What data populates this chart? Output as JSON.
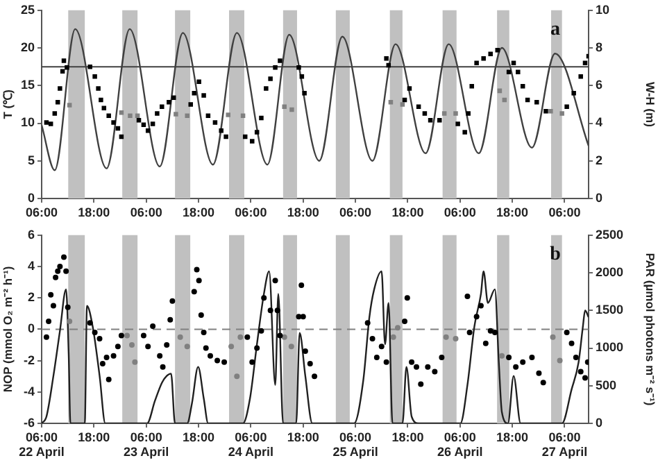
{
  "chart_data": [
    {
      "type": "scatter",
      "ylabel": "T (℃)",
      "y2label": "W-H (m)",
      "annotations": [
        "a"
      ],
      "xlim": [
        "--04-22T06:00",
        "--04-27T11:30"
      ],
      "xticks": [
        {
          "value": "--04-22T06:00",
          "label": "06:00"
        },
        {
          "value": "--04-22T18:00",
          "label": "18:00"
        },
        {
          "value": "--04-23T06:00",
          "label": "06:00"
        },
        {
          "value": "--04-23T18:00",
          "label": "18:00"
        },
        {
          "value": "--04-24T06:00",
          "label": "06:00"
        },
        {
          "value": "--04-24T18:00",
          "label": "18:00"
        },
        {
          "value": "--04-25T06:00",
          "label": "06:00"
        },
        {
          "value": "--04-25T18:00",
          "label": "18:00"
        },
        {
          "value": "--04-26T06:00",
          "label": "06:00"
        },
        {
          "value": "--04-26T18:00",
          "label": "18:00"
        },
        {
          "value": "--04-27T06:00",
          "label": "06:00"
        }
      ],
      "ylim": [
        0,
        25
      ],
      "yticks": [
        0,
        5,
        10,
        15,
        20,
        25
      ],
      "y2lim": [
        0,
        10
      ],
      "y2ticks": [
        0,
        2,
        4,
        6,
        8,
        10
      ],
      "series": [
        {
          "type": "line",
          "axis": "y2",
          "color": "#404040",
          "marker": "none",
          "line_style": "solid",
          "x": [
            "--04-22T06:00",
            "--04-22T09:00",
            "--04-22T13:42",
            "--04-22T20:54",
            "--04-23T02:12",
            "--04-23T09:06",
            "--04-23T14:24",
            "--04-23T21:18",
            "--04-24T02:48",
            "--04-24T09:48",
            "--04-24T14:48",
            "--04-24T21:42",
            "--04-25T03:00",
            "--04-25T09:54",
            "--04-25T15:12",
            "--04-25T22:06",
            "--04-26T03:24",
            "--04-26T10:18",
            "--04-26T15:36",
            "--04-26T22:30",
            "--04-27T03:48",
            "--04-27T11:30"
          ],
          "values": [
            3.9,
            1.5,
            9.0,
            1.6,
            9.0,
            1.7,
            8.8,
            1.8,
            8.8,
            1.8,
            8.7,
            2.0,
            8.6,
            2.0,
            8.2,
            2.4,
            8.2,
            2.4,
            8.0,
            2.7,
            7.7,
            2.8
          ]
        },
        {
          "color": "#000000",
          "marker": "square",
          "x": [
            "--04-22T07:06",
            "--04-22T08:06",
            "--04-22T09:00",
            "--04-22T09:42",
            "--04-22T10:12",
            "--04-22T10:48",
            "--04-22T11:06",
            "--04-22T11:48",
            "--04-22T17:06",
            "--04-22T18:12",
            "--04-22T19:00",
            "--04-22T19:36",
            "--04-22T20:18",
            "--04-22T21:24",
            "--04-22T22:30",
            "--04-22T23:30",
            "--04-23T00:18",
            "--04-23T04:18",
            "--04-23T05:24",
            "--04-23T06:24",
            "--04-23T07:30",
            "--04-23T08:30",
            "--04-23T09:36",
            "--04-23T11:12",
            "--04-23T12:18",
            "--04-23T16:12",
            "--04-23T17:00",
            "--04-23T18:06",
            "--04-23T19:12",
            "--04-23T20:12",
            "--04-23T21:48",
            "--04-23T23:12",
            "--04-24T00:18",
            "--04-24T04:42",
            "--04-24T06:18",
            "--04-24T07:24",
            "--04-24T08:24",
            "--04-24T09:30",
            "--04-24T10:30",
            "--04-24T11:36",
            "--04-24T12:42",
            "--04-24T17:00",
            "--04-24T17:42",
            "--04-24T18:18",
            "--04-25T13:06",
            "--04-25T13:36",
            "--04-25T17:18",
            "--04-25T18:24",
            "--04-25T20:30",
            "--04-25T21:54",
            "--04-25T23:12",
            "--04-26T01:18",
            "--04-26T05:30",
            "--04-26T07:06",
            "--04-26T07:54",
            "--04-26T08:42",
            "--04-26T09:48",
            "--04-26T11:24",
            "--04-26T13:00",
            "--04-26T14:36",
            "--04-26T17:12",
            "--04-26T18:18",
            "--04-26T19:18",
            "--04-26T20:24",
            "--04-26T21:30",
            "--04-26T23:36",
            "--04-27T01:42",
            "--04-27T06:30",
            "--04-27T08:06",
            "--04-27T09:42",
            "--04-27T10:42",
            "--04-27T11:30"
          ],
          "values": [
            10.1,
            9.9,
            11.3,
            12.8,
            14.6,
            16.9,
            18.3,
            17.4,
            17.5,
            16.2,
            14.6,
            13.1,
            12.0,
            11.0,
            10.1,
            9.3,
            8.2,
            10.4,
            9.8,
            9.0,
            9.9,
            11.3,
            12.2,
            12.8,
            13.4,
            12.5,
            14.0,
            15.5,
            13.7,
            11.0,
            10.1,
            9.0,
            8.2,
            8.2,
            7.6,
            8.8,
            10.7,
            14.6,
            15.9,
            17.4,
            18.3,
            17.4,
            16.2,
            14.0,
            18.6,
            17.7,
            13.1,
            14.6,
            12.2,
            11.3,
            10.4,
            10.4,
            9.9,
            8.8,
            11.3,
            14.9,
            18.0,
            18.6,
            19.2,
            19.7,
            16.8,
            18.0,
            16.8,
            14.9,
            13.1,
            12.8,
            11.6,
            12.2,
            14.0,
            16.2,
            18.0,
            18.9
          ]
        },
        {
          "color": "#808080",
          "marker": "square",
          "x": [
            "--04-22T12:24",
            "--04-23T00:18",
            "--04-23T02:18",
            "--04-23T04:00",
            "--04-23T12:48",
            "--04-23T15:24",
            "--04-24T00:48",
            "--04-24T04:12",
            "--04-24T13:42",
            "--04-24T15:24",
            "--04-25T14:06",
            "--04-25T16:48",
            "--04-26T02:24",
            "--04-26T05:00",
            "--04-26T15:06",
            "--04-26T16:12",
            "--04-27T02:48",
            "--04-27T05:24"
          ],
          "values": [
            12.4,
            11.4,
            11.0,
            11.0,
            11.2,
            11.0,
            11.1,
            11.0,
            12.2,
            11.8,
            12.8,
            12.5,
            11.3,
            11.3,
            14.3,
            13.1,
            11.6,
            11.3
          ]
        }
      ],
      "ref_lines": [
        {
          "axis": "y2",
          "value": 7,
          "color": "#404040",
          "line_style": "solid"
        }
      ],
      "bands": [
        {
          "axis": "x",
          "from": "--04-22T12:06",
          "to": "--04-22T15:54",
          "color": "#c0c0c0"
        },
        {
          "axis": "x",
          "from": "--04-23T00:30",
          "to": "--04-23T04:00",
          "color": "#c0c0c0"
        },
        {
          "axis": "x",
          "from": "--04-23T12:36",
          "to": "--04-23T16:06",
          "color": "#c0c0c0"
        },
        {
          "axis": "x",
          "from": "--04-24T01:00",
          "to": "--04-24T04:30",
          "color": "#c0c0c0"
        },
        {
          "axis": "x",
          "from": "--04-24T13:24",
          "to": "--04-24T16:36",
          "color": "#c0c0c0"
        },
        {
          "axis": "x",
          "from": "--04-25T01:30",
          "to": "--04-25T04:42",
          "color": "#c0c0c0"
        },
        {
          "axis": "x",
          "from": "--04-25T13:54",
          "to": "--04-25T16:48",
          "color": "#c0c0c0"
        },
        {
          "axis": "x",
          "from": "--04-26T02:00",
          "to": "--04-26T05:12",
          "color": "#c0c0c0"
        },
        {
          "axis": "x",
          "from": "--04-26T14:30",
          "to": "--04-26T17:18",
          "color": "#c0c0c0"
        },
        {
          "axis": "x",
          "from": "--04-27T02:54",
          "to": "--04-27T05:24",
          "color": "#c0c0c0"
        }
      ]
    },
    {
      "type": "scatter",
      "ylabel": "NOP (mmol O₂ m⁻² h⁻¹)",
      "y2label": "PAR (µmol photons m⁻² s⁻¹)",
      "annotations": [
        "b"
      ],
      "xlim": [
        "--04-22T06:00",
        "--04-27T11:30"
      ],
      "xticks": [
        {
          "value": "--04-22T06:00",
          "label": "06:00\n22 April"
        },
        {
          "value": "--04-22T18:00",
          "label": "18:00"
        },
        {
          "value": "--04-23T06:00",
          "label": "06:00\n23 April"
        },
        {
          "value": "--04-23T18:00",
          "label": "18:00"
        },
        {
          "value": "--04-24T06:00",
          "label": "06:00\n24 April"
        },
        {
          "value": "--04-24T18:00",
          "label": "18:00"
        },
        {
          "value": "--04-25T06:00",
          "label": "06:00\n25 April"
        },
        {
          "value": "--04-25T18:00",
          "label": "18:00"
        },
        {
          "value": "--04-26T06:00",
          "label": "06:00\n26 April"
        },
        {
          "value": "--04-26T18:00",
          "label": "18:00"
        },
        {
          "value": "--04-27T06:00",
          "label": "06:00\n27 April"
        }
      ],
      "ylim": [
        -6,
        6
      ],
      "yticks": [
        -6,
        -4,
        -2,
        0,
        2,
        4,
        6
      ],
      "y2lim": [
        0,
        2500
      ],
      "y2ticks": [
        0,
        500,
        1000,
        1500,
        2000,
        2500
      ],
      "series": [
        {
          "type": "line",
          "axis": "y2",
          "color": "#202020",
          "marker": "none",
          "line_style": "solid",
          "x": [
            "--04-22T06:00",
            "--04-22T07:06",
            "--04-22T08:42",
            "--04-22T10:12",
            "--04-22T11:36",
            "--04-22T12:12",
            "--04-22T12:36",
            "--04-22T15:54",
            "--04-22T16:24",
            "--04-22T17:42",
            "--04-22T19:18",
            "--04-22T20:36",
            "--04-23T06:12",
            "--04-23T08:00",
            "--04-23T09:36",
            "--04-23T10:42",
            "--04-23T11:42",
            "--04-23T12:36",
            "--04-23T15:24",
            "--04-23T16:30",
            "--04-23T17:54",
            "--04-23T19:12",
            "--04-23T20:12",
            "--04-24T04:12",
            "--04-24T05:48",
            "--04-24T07:24",
            "--04-24T09:00",
            "--04-24T10:12",
            "--04-24T11:36",
            "--04-24T12:18",
            "--04-24T13:24",
            "--04-24T16:24",
            "--04-24T17:12",
            "--04-24T18:30",
            "--04-24T20:06",
            "--04-25T05:42",
            "--04-25T07:48",
            "--04-25T09:12",
            "--04-25T10:18",
            "--04-25T12:00",
            "--04-25T12:48",
            "--04-25T13:36",
            "--04-25T14:30",
            "--04-25T16:48",
            "--04-25T17:42",
            "--04-25T18:54",
            "--04-25T20:30",
            "--04-26T06:06",
            "--04-26T07:42",
            "--04-26T09:18",
            "--04-26T10:48",
            "--04-26T11:24",
            "--04-26T12:24",
            "--04-26T14:00",
            "--04-26T14:54",
            "--04-26T15:36",
            "--04-26T17:00",
            "--04-26T18:18",
            "--04-26T19:54",
            "--04-27T05:24",
            "--04-27T07:36",
            "--04-27T09:12",
            "--04-27T10:12",
            "--04-27T10:42",
            "--04-27T11:30"
          ],
          "values": [
            0,
            90,
            630,
            1230,
            1780,
            930,
            0,
            0,
            1560,
            1290,
            630,
            0,
            0,
            300,
            540,
            630,
            660,
            0,
            0,
            270,
            750,
            330,
            0,
            0,
            330,
            1050,
            1720,
            2020,
            510,
            1720,
            0,
            0,
            1200,
            630,
            0,
            0,
            570,
            1410,
            1780,
            2020,
            1050,
            1600,
            0,
            0,
            750,
            90,
            0,
            0,
            510,
            1290,
            1720,
            2020,
            1600,
            1780,
            810,
            150,
            0,
            630,
            0,
            0,
            450,
            810,
            1290,
            1500,
            1410
          ]
        },
        {
          "color": "#000000",
          "marker": "circle",
          "x": [
            "--04-22T07:06",
            "--04-22T07:36",
            "--04-22T08:06",
            "--04-22T08:42",
            "--04-22T09:12",
            "--04-22T09:42",
            "--04-22T10:12",
            "--04-22T11:06",
            "--04-22T11:36",
            "--04-22T12:00",
            "--04-22T17:06",
            "--04-22T18:12",
            "--04-22T19:18",
            "--04-22T20:00",
            "--04-22T20:54",
            "--04-22T21:24",
            "--04-22T22:30",
            "--04-22T23:30",
            "--04-23T00:18",
            "--04-23T05:24",
            "--04-23T06:24",
            "--04-23T07:30",
            "--04-23T09:06",
            "--04-23T09:48",
            "--04-23T10:42",
            "--04-23T11:30",
            "--04-23T12:00",
            "--04-23T17:00",
            "--04-23T17:36",
            "--04-23T18:06",
            "--04-23T18:36",
            "--04-23T19:12",
            "--04-23T19:42",
            "--04-23T20:42",
            "--04-23T22:18",
            "--04-23T23:54",
            "--04-24T05:12",
            "--04-24T06:18",
            "--04-24T07:24",
            "--04-24T08:24",
            "--04-24T09:00",
            "--04-24T10:30",
            "--04-24T11:36",
            "--04-24T12:06",
            "--04-24T12:42",
            "--04-24T17:00",
            "--04-24T17:36",
            "--04-24T18:00",
            "--04-24T18:30",
            "--04-24T19:36",
            "--04-24T20:36",
            "--04-25T08:48",
            "--04-25T09:54",
            "--04-25T10:54",
            "--04-25T12:00",
            "--04-25T13:06",
            "--04-25T17:18",
            "--04-25T17:54",
            "--04-25T18:54",
            "--04-25T20:00",
            "--04-25T21:00",
            "--04-25T22:36",
            "--04-26T00:12",
            "--04-26T01:48",
            "--04-26T07:42",
            "--04-26T08:12",
            "--04-26T09:48",
            "--04-26T10:48",
            "--04-26T11:54",
            "--04-26T13:00",
            "--04-26T14:00",
            "--04-26T17:12",
            "--04-26T18:48",
            "--04-26T20:24",
            "--04-26T22:30",
            "--04-27T00:06",
            "--04-27T01:06",
            "--04-27T06:30",
            "--04-27T07:36",
            "--04-27T08:36",
            "--04-27T09:42",
            "--04-27T10:42",
            "--04-27T11:18"
          ],
          "values": [
            -0.5,
            0.5,
            2.2,
            1.5,
            3.3,
            3.7,
            4.0,
            4.6,
            3.7,
            1.4,
            0.4,
            -0.2,
            -0.6,
            -2.2,
            -1.8,
            -3.2,
            -1.7,
            -1.1,
            -0.4,
            -0.4,
            -1.1,
            0.2,
            -1.7,
            -2.4,
            -1.0,
            0.6,
            1.8,
            2.4,
            3.8,
            3.1,
            0.9,
            -0.2,
            -1.2,
            -1.7,
            -2.0,
            -2.1,
            -0.5,
            -2.1,
            -1.2,
            -0.1,
            2.0,
            1.2,
            3.1,
            1.2,
            -0.4,
            0.8,
            2.8,
            0.8,
            -1.4,
            -2.2,
            -3.0,
            0.4,
            -0.6,
            -1.8,
            -1.1,
            -2.1,
            0.5,
            2.0,
            -2.1,
            -2.4,
            -3.5,
            -2.4,
            -2.7,
            -1.8,
            2.1,
            -0.2,
            0.8,
            1.5,
            -0.9,
            -0.1,
            -0.2,
            -1.8,
            -2.4,
            -2.1,
            -1.8,
            -2.8,
            -3.4,
            -0.2,
            -0.9,
            -1.8,
            -2.7,
            -3.1,
            -2.1
          ]
        },
        {
          "color": "#808080",
          "marker": "circle",
          "x": [
            "--04-22T12:24",
            "--04-23T01:36",
            "--04-23T02:42",
            "--04-23T03:24",
            "--04-23T13:48",
            "--04-23T15:24",
            "--04-24T01:30",
            "--04-24T02:48",
            "--04-24T03:36",
            "--04-24T13:42",
            "--04-24T15:18",
            "--04-25T14:42",
            "--04-25T15:42",
            "--04-26T02:48",
            "--04-26T05:00",
            "--04-26T15:36",
            "--04-27T03:18",
            "--04-27T04:54"
          ],
          "values": [
            0.5,
            -0.4,
            -1.0,
            -2.1,
            -0.5,
            -1.1,
            -1.1,
            -3.0,
            -0.5,
            -0.5,
            -1.1,
            -0.5,
            0.1,
            -0.5,
            -0.6,
            -1.7,
            -0.5,
            -2.0
          ]
        }
      ],
      "ref_lines": [
        {
          "axis": "y",
          "value": 0,
          "color": "#808080",
          "line_style": "dashed"
        }
      ],
      "bands": [
        {
          "axis": "x",
          "from": "--04-22T12:06",
          "to": "--04-22T15:54",
          "color": "#c0c0c0"
        },
        {
          "axis": "x",
          "from": "--04-23T00:30",
          "to": "--04-23T04:00",
          "color": "#c0c0c0"
        },
        {
          "axis": "x",
          "from": "--04-23T12:36",
          "to": "--04-23T16:06",
          "color": "#c0c0c0"
        },
        {
          "axis": "x",
          "from": "--04-24T01:00",
          "to": "--04-24T04:30",
          "color": "#c0c0c0"
        },
        {
          "axis": "x",
          "from": "--04-24T13:24",
          "to": "--04-24T16:36",
          "color": "#c0c0c0"
        },
        {
          "axis": "x",
          "from": "--04-25T01:30",
          "to": "--04-25T04:42",
          "color": "#c0c0c0"
        },
        {
          "axis": "x",
          "from": "--04-25T13:54",
          "to": "--04-25T16:48",
          "color": "#c0c0c0"
        },
        {
          "axis": "x",
          "from": "--04-26T02:00",
          "to": "--04-26T05:12",
          "color": "#c0c0c0"
        },
        {
          "axis": "x",
          "from": "--04-26T14:30",
          "to": "--04-26T17:18",
          "color": "#c0c0c0"
        },
        {
          "axis": "x",
          "from": "--04-27T02:54",
          "to": "--04-27T05:24",
          "color": "#c0c0c0"
        }
      ]
    }
  ]
}
